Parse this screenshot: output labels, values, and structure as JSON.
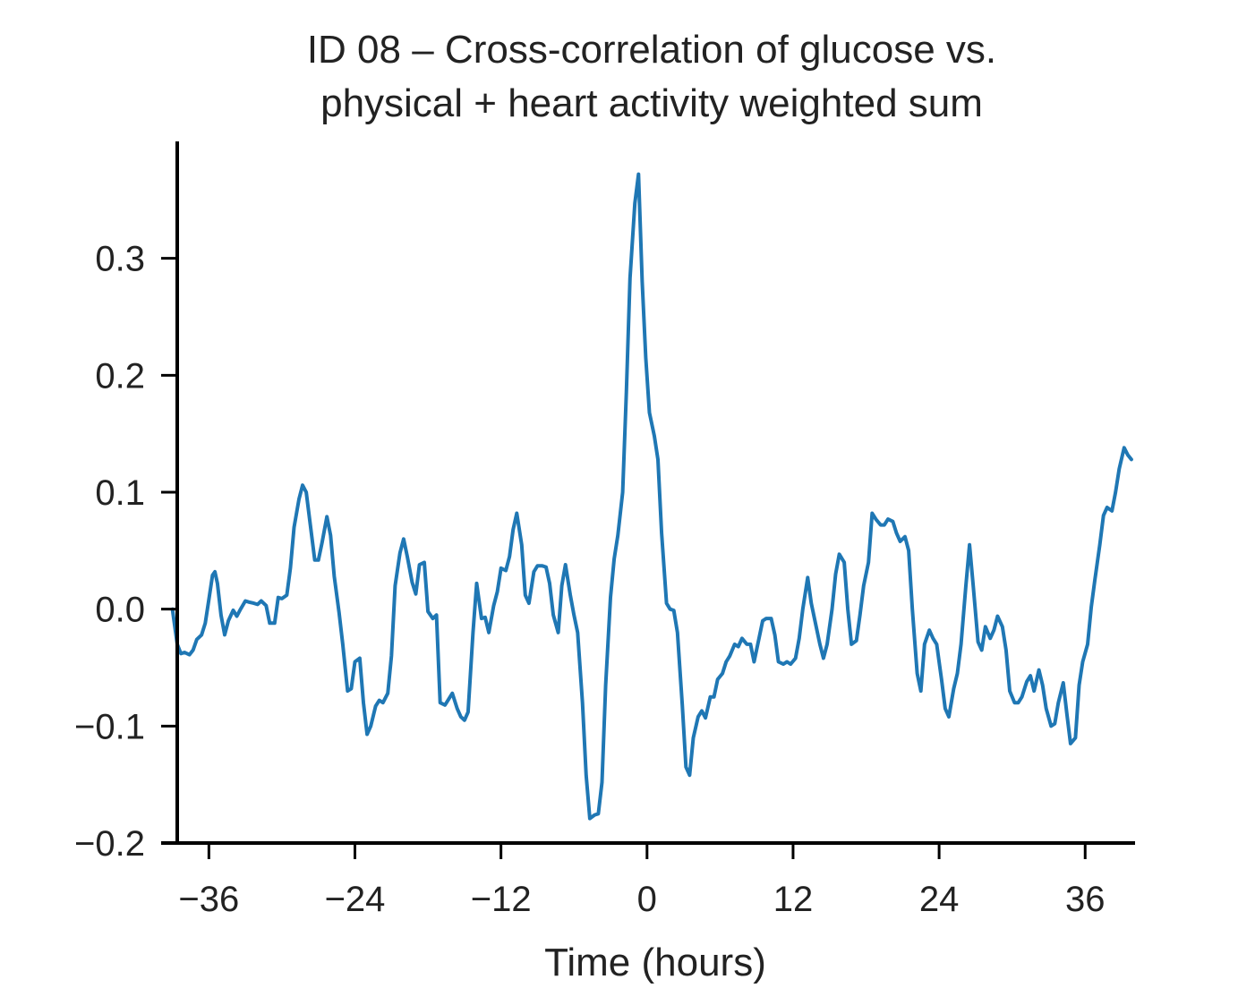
{
  "chart_data": {
    "type": "line",
    "title_lines": [
      "ID 08 – Cross-correlation of glucose vs.",
      "physical + heart activity weighted sum"
    ],
    "xlabel": "Time (hours)",
    "ylabel": "",
    "xlim": [
      -38.6,
      40.1
    ],
    "ylim": [
      -0.2,
      0.4
    ],
    "xticks": [
      -36,
      -24,
      -12,
      0,
      12,
      24,
      36
    ],
    "xtick_labels": [
      "−36",
      "−24",
      "−12",
      "0",
      "12",
      "24",
      "36"
    ],
    "yticks": [
      -0.2,
      -0.1,
      0.0,
      0.1,
      0.2,
      0.3
    ],
    "ytick_labels": [
      "−0.2",
      "−0.1",
      "0.0",
      "0.1",
      "0.2",
      "0.3"
    ],
    "grid": false,
    "legend": "none",
    "series": [
      {
        "color": "#1f77b4",
        "points": [
          [
            -39.0,
            0.0
          ],
          [
            -38.6,
            -0.03
          ],
          [
            -38.3,
            -0.038
          ],
          [
            -38.0,
            -0.037
          ],
          [
            -37.6,
            -0.039
          ],
          [
            -37.3,
            -0.035
          ],
          [
            -37.0,
            -0.026
          ],
          [
            -36.6,
            -0.022
          ],
          [
            -36.3,
            -0.012
          ],
          [
            -36.0,
            0.008
          ],
          [
            -35.7,
            0.029
          ],
          [
            -35.5,
            0.032
          ],
          [
            -35.3,
            0.022
          ],
          [
            -35.0,
            -0.005
          ],
          [
            -34.7,
            -0.022
          ],
          [
            -34.4,
            -0.01
          ],
          [
            -34.0,
            -0.001
          ],
          [
            -33.7,
            -0.006
          ],
          [
            -33.4,
            0.0
          ],
          [
            -33.0,
            0.007
          ],
          [
            -32.7,
            0.006
          ],
          [
            -32.3,
            0.005
          ],
          [
            -32.0,
            0.004
          ],
          [
            -31.7,
            0.007
          ],
          [
            -31.3,
            0.003
          ],
          [
            -31.0,
            -0.012
          ],
          [
            -30.6,
            -0.012
          ],
          [
            -30.3,
            0.01
          ],
          [
            -30.0,
            0.009
          ],
          [
            -29.6,
            0.012
          ],
          [
            -29.3,
            0.035
          ],
          [
            -29.0,
            0.07
          ],
          [
            -28.6,
            0.094
          ],
          [
            -28.3,
            0.106
          ],
          [
            -28.0,
            0.1
          ],
          [
            -27.7,
            0.075
          ],
          [
            -27.3,
            0.042
          ],
          [
            -27.0,
            0.042
          ],
          [
            -26.7,
            0.057
          ],
          [
            -26.3,
            0.079
          ],
          [
            -26.0,
            0.063
          ],
          [
            -25.7,
            0.028
          ],
          [
            -25.3,
            -0.003
          ],
          [
            -25.0,
            -0.03
          ],
          [
            -24.6,
            -0.07
          ],
          [
            -24.3,
            -0.068
          ],
          [
            -24.0,
            -0.045
          ],
          [
            -23.6,
            -0.042
          ],
          [
            -23.3,
            -0.08
          ],
          [
            -23.0,
            -0.107
          ],
          [
            -22.7,
            -0.1
          ],
          [
            -22.3,
            -0.083
          ],
          [
            -22.0,
            -0.078
          ],
          [
            -21.7,
            -0.08
          ],
          [
            -21.3,
            -0.072
          ],
          [
            -21.0,
            -0.04
          ],
          [
            -20.7,
            0.02
          ],
          [
            -20.3,
            0.048
          ],
          [
            -20.0,
            0.06
          ],
          [
            -19.7,
            0.045
          ],
          [
            -19.3,
            0.023
          ],
          [
            -19.0,
            0.013
          ],
          [
            -18.7,
            0.038
          ],
          [
            -18.3,
            0.04
          ],
          [
            -18.0,
            -0.002
          ],
          [
            -17.6,
            -0.008
          ],
          [
            -17.3,
            -0.005
          ],
          [
            -17.0,
            -0.08
          ],
          [
            -16.6,
            -0.082
          ],
          [
            -16.3,
            -0.077
          ],
          [
            -16.0,
            -0.072
          ],
          [
            -15.6,
            -0.085
          ],
          [
            -15.3,
            -0.092
          ],
          [
            -15.0,
            -0.095
          ],
          [
            -14.7,
            -0.088
          ],
          [
            -14.3,
            -0.02
          ],
          [
            -14.0,
            0.022
          ],
          [
            -13.6,
            -0.008
          ],
          [
            -13.3,
            -0.007
          ],
          [
            -13.0,
            -0.02
          ],
          [
            -12.6,
            0.003
          ],
          [
            -12.3,
            0.015
          ],
          [
            -12.0,
            0.035
          ],
          [
            -11.6,
            0.033
          ],
          [
            -11.3,
            0.045
          ],
          [
            -11.0,
            0.068
          ],
          [
            -10.7,
            0.082
          ],
          [
            -10.3,
            0.055
          ],
          [
            -10.0,
            0.012
          ],
          [
            -9.7,
            0.005
          ],
          [
            -9.3,
            0.032
          ],
          [
            -9.0,
            0.037
          ],
          [
            -8.6,
            0.037
          ],
          [
            -8.3,
            0.036
          ],
          [
            -8.0,
            0.022
          ],
          [
            -7.7,
            -0.005
          ],
          [
            -7.3,
            -0.02
          ],
          [
            -7.0,
            0.02
          ],
          [
            -6.7,
            0.038
          ],
          [
            -6.3,
            0.012
          ],
          [
            -6.0,
            -0.005
          ],
          [
            -5.7,
            -0.02
          ],
          [
            -5.3,
            -0.08
          ],
          [
            -5.0,
            -0.142
          ],
          [
            -4.7,
            -0.179
          ],
          [
            -4.3,
            -0.176
          ],
          [
            -4.0,
            -0.175
          ],
          [
            -3.7,
            -0.148
          ],
          [
            -3.4,
            -0.065
          ],
          [
            -3.0,
            0.01
          ],
          [
            -2.7,
            0.043
          ],
          [
            -2.4,
            0.063
          ],
          [
            -2.0,
            0.1
          ],
          [
            -1.7,
            0.185
          ],
          [
            -1.4,
            0.283
          ],
          [
            -1.0,
            0.347
          ],
          [
            -0.7,
            0.372
          ],
          [
            -0.4,
            0.28
          ],
          [
            -0.1,
            0.215
          ],
          [
            0.2,
            0.168
          ],
          [
            0.6,
            0.148
          ],
          [
            0.9,
            0.128
          ],
          [
            1.2,
            0.065
          ],
          [
            1.6,
            0.005
          ],
          [
            1.9,
            0.0
          ],
          [
            2.2,
            -0.001
          ],
          [
            2.5,
            -0.02
          ],
          [
            2.9,
            -0.082
          ],
          [
            3.2,
            -0.135
          ],
          [
            3.5,
            -0.142
          ],
          [
            3.8,
            -0.11
          ],
          [
            4.2,
            -0.092
          ],
          [
            4.5,
            -0.087
          ],
          [
            4.8,
            -0.093
          ],
          [
            5.2,
            -0.075
          ],
          [
            5.5,
            -0.075
          ],
          [
            5.8,
            -0.06
          ],
          [
            6.2,
            -0.055
          ],
          [
            6.5,
            -0.045
          ],
          [
            6.8,
            -0.04
          ],
          [
            7.2,
            -0.03
          ],
          [
            7.5,
            -0.032
          ],
          [
            7.8,
            -0.025
          ],
          [
            8.2,
            -0.03
          ],
          [
            8.5,
            -0.03
          ],
          [
            8.8,
            -0.045
          ],
          [
            9.2,
            -0.025
          ],
          [
            9.5,
            -0.01
          ],
          [
            9.8,
            -0.008
          ],
          [
            10.2,
            -0.008
          ],
          [
            10.5,
            -0.022
          ],
          [
            10.8,
            -0.045
          ],
          [
            11.2,
            -0.047
          ],
          [
            11.5,
            -0.045
          ],
          [
            11.8,
            -0.047
          ],
          [
            12.2,
            -0.042
          ],
          [
            12.5,
            -0.025
          ],
          [
            12.8,
            0.0
          ],
          [
            13.2,
            0.027
          ],
          [
            13.5,
            0.005
          ],
          [
            13.8,
            -0.01
          ],
          [
            14.2,
            -0.03
          ],
          [
            14.5,
            -0.042
          ],
          [
            14.8,
            -0.03
          ],
          [
            15.2,
            0.0
          ],
          [
            15.5,
            0.03
          ],
          [
            15.8,
            0.047
          ],
          [
            16.2,
            0.04
          ],
          [
            16.5,
            0.0
          ],
          [
            16.8,
            -0.03
          ],
          [
            17.2,
            -0.027
          ],
          [
            17.5,
            -0.005
          ],
          [
            17.8,
            0.02
          ],
          [
            18.2,
            0.04
          ],
          [
            18.5,
            0.082
          ],
          [
            18.8,
            0.077
          ],
          [
            19.2,
            0.072
          ],
          [
            19.5,
            0.072
          ],
          [
            19.8,
            0.077
          ],
          [
            20.2,
            0.075
          ],
          [
            20.5,
            0.065
          ],
          [
            20.8,
            0.058
          ],
          [
            21.2,
            0.062
          ],
          [
            21.5,
            0.05
          ],
          [
            21.8,
            0.0
          ],
          [
            22.2,
            -0.055
          ],
          [
            22.5,
            -0.07
          ],
          [
            22.8,
            -0.03
          ],
          [
            23.2,
            -0.018
          ],
          [
            23.5,
            -0.025
          ],
          [
            23.8,
            -0.03
          ],
          [
            24.2,
            -0.06
          ],
          [
            24.5,
            -0.085
          ],
          [
            24.8,
            -0.092
          ],
          [
            25.2,
            -0.068
          ],
          [
            25.5,
            -0.055
          ],
          [
            25.8,
            -0.03
          ],
          [
            26.2,
            0.02
          ],
          [
            26.5,
            0.055
          ],
          [
            26.8,
            0.02
          ],
          [
            27.2,
            -0.028
          ],
          [
            27.5,
            -0.035
          ],
          [
            27.8,
            -0.015
          ],
          [
            28.2,
            -0.025
          ],
          [
            28.5,
            -0.018
          ],
          [
            28.8,
            -0.006
          ],
          [
            29.2,
            -0.015
          ],
          [
            29.5,
            -0.035
          ],
          [
            29.8,
            -0.07
          ],
          [
            30.2,
            -0.08
          ],
          [
            30.5,
            -0.08
          ],
          [
            30.8,
            -0.075
          ],
          [
            31.2,
            -0.062
          ],
          [
            31.5,
            -0.057
          ],
          [
            31.8,
            -0.07
          ],
          [
            32.2,
            -0.052
          ],
          [
            32.5,
            -0.065
          ],
          [
            32.8,
            -0.085
          ],
          [
            33.2,
            -0.1
          ],
          [
            33.5,
            -0.098
          ],
          [
            33.8,
            -0.08
          ],
          [
            34.2,
            -0.063
          ],
          [
            34.5,
            -0.09
          ],
          [
            34.8,
            -0.115
          ],
          [
            35.2,
            -0.11
          ],
          [
            35.5,
            -0.065
          ],
          [
            35.8,
            -0.045
          ],
          [
            36.2,
            -0.03
          ],
          [
            36.5,
            0.002
          ],
          [
            36.8,
            0.025
          ],
          [
            37.2,
            0.055
          ],
          [
            37.5,
            0.08
          ],
          [
            37.8,
            0.087
          ],
          [
            38.2,
            0.084
          ],
          [
            38.5,
            0.1
          ],
          [
            38.8,
            0.12
          ],
          [
            39.2,
            0.138
          ],
          [
            39.5,
            0.132
          ],
          [
            39.8,
            0.128
          ]
        ]
      }
    ]
  }
}
